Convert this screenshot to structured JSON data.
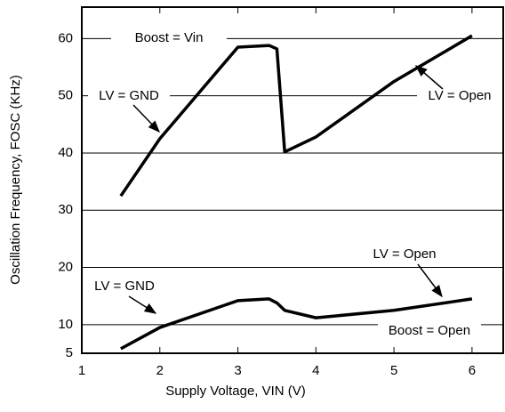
{
  "chart_data": {
    "type": "line",
    "x_label": "Supply Voltage, VIN (V)",
    "y_label": "Oscillation Frequency, FOSC (KHz)",
    "xlim": [
      1,
      6.4
    ],
    "xticks": [
      1,
      2,
      3,
      4,
      5,
      6
    ],
    "ylim": [
      5,
      65.5
    ],
    "yticks": [
      5,
      10,
      20,
      30,
      40,
      50,
      60
    ],
    "grid": true,
    "series": [
      {
        "color": "#000000",
        "x": [
          1.5,
          2,
          3,
          3.4,
          3.5,
          3.6,
          4,
          5,
          6
        ],
        "values": [
          32.5,
          42.5,
          58.5,
          58.8,
          58.2,
          40.2,
          42.8,
          52.5,
          60.5
        ]
      },
      {
        "color": "#000000",
        "x": [
          1.5,
          2,
          3,
          3.4,
          3.5,
          3.6,
          4,
          5,
          6
        ],
        "values": [
          5.8,
          9.5,
          14.2,
          14.5,
          13.8,
          12.5,
          11.2,
          12.5,
          14.5
        ]
      }
    ],
    "annotations": [
      "Boost = Vin",
      "LV = GND",
      "LV = Open",
      "LV = GND",
      "LV = Open",
      "Boost = Open"
    ]
  }
}
